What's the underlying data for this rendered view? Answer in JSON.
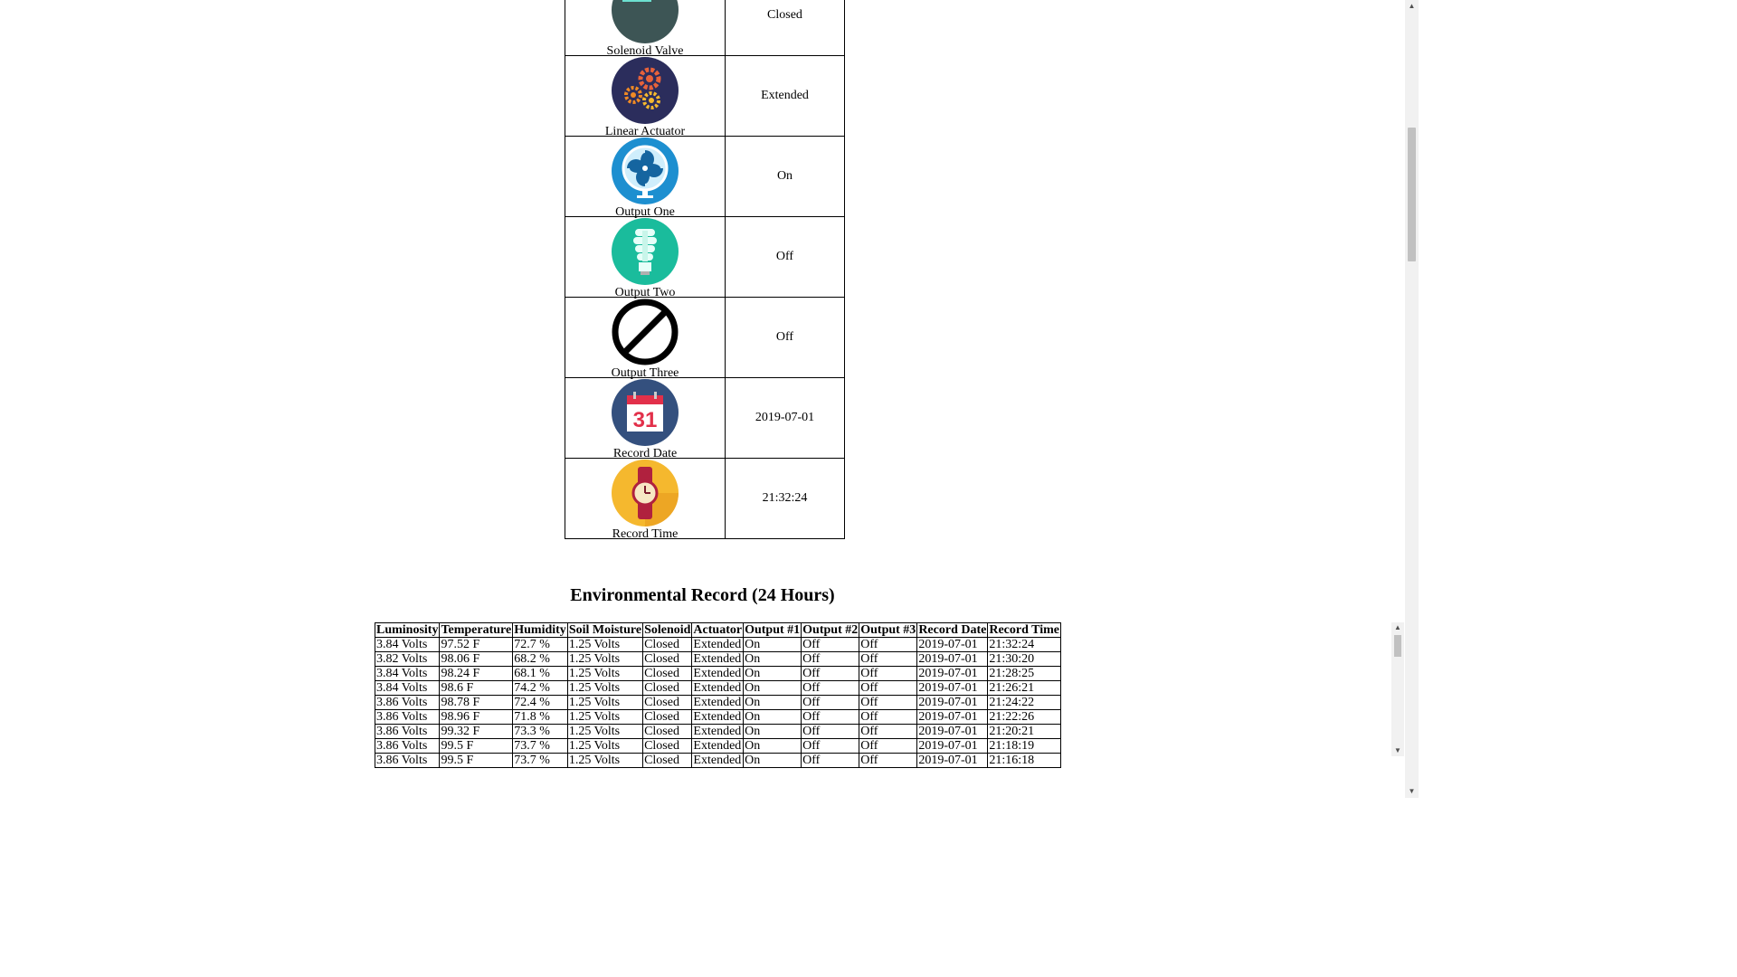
{
  "status_rows": [
    {
      "icon": "solenoid-valve-icon",
      "label": "Solenoid Valve",
      "value": "Closed"
    },
    {
      "icon": "gears-icon",
      "label": "Linear Actuator",
      "value": "Extended"
    },
    {
      "icon": "fan-icon",
      "label": "Output One",
      "value": "On"
    },
    {
      "icon": "light-bulb-icon",
      "label": "Output Two",
      "value": "Off"
    },
    {
      "icon": "prohibited-icon",
      "label": "Output Three",
      "value": "Off"
    },
    {
      "icon": "calendar-icon",
      "label": "Record Date",
      "value": "2019-07-01",
      "calendar_day": "31"
    },
    {
      "icon": "watch-icon",
      "label": "Record Time",
      "value": "21:32:24"
    }
  ],
  "record": {
    "title": "Environmental Record (24 Hours)",
    "headers": [
      "Luminosity",
      "Temperature",
      "Humidity",
      "Soil Moisture",
      "Solenoid",
      "Actuator",
      "Output #1",
      "Output #2",
      "Output #3",
      "Record Date",
      "Record Time"
    ],
    "rows": [
      [
        "3.84 Volts",
        "97.52 F",
        "72.7 %",
        "1.25 Volts",
        "Closed",
        "Extended",
        "On",
        "Off",
        "Off",
        "2019-07-01",
        "21:32:24"
      ],
      [
        "3.82 Volts",
        "98.06 F",
        "68.2 %",
        "1.25 Volts",
        "Closed",
        "Extended",
        "On",
        "Off",
        "Off",
        "2019-07-01",
        "21:30:20"
      ],
      [
        "3.84 Volts",
        "98.24 F",
        "68.1 %",
        "1.25 Volts",
        "Closed",
        "Extended",
        "On",
        "Off",
        "Off",
        "2019-07-01",
        "21:28:25"
      ],
      [
        "3.84 Volts",
        "98.6 F",
        "74.2 %",
        "1.25 Volts",
        "Closed",
        "Extended",
        "On",
        "Off",
        "Off",
        "2019-07-01",
        "21:26:21"
      ],
      [
        "3.86 Volts",
        "98.78 F",
        "72.4 %",
        "1.25 Volts",
        "Closed",
        "Extended",
        "On",
        "Off",
        "Off",
        "2019-07-01",
        "21:24:22"
      ],
      [
        "3.86 Volts",
        "98.96 F",
        "71.8 %",
        "1.25 Volts",
        "Closed",
        "Extended",
        "On",
        "Off",
        "Off",
        "2019-07-01",
        "21:22:26"
      ],
      [
        "3.86 Volts",
        "99.32 F",
        "73.3 %",
        "1.25 Volts",
        "Closed",
        "Extended",
        "On",
        "Off",
        "Off",
        "2019-07-01",
        "21:20:21"
      ],
      [
        "3.86 Volts",
        "99.5 F",
        "73.7 %",
        "1.25 Volts",
        "Closed",
        "Extended",
        "On",
        "Off",
        "Off",
        "2019-07-01",
        "21:18:19"
      ],
      [
        "3.86 Volts",
        "99.5 F",
        "73.7 %",
        "1.25 Volts",
        "Closed",
        "Extended",
        "On",
        "Off",
        "Off",
        "2019-07-01",
        "21:16:18"
      ]
    ]
  },
  "colors": {
    "valve_bg": "#3d5555",
    "gears_bg": "#2b2d5c",
    "fan_bg": "#1d8fd0",
    "bulb_bg": "#1abc9c",
    "calendar_bg": "#34507e",
    "watch_bg": "#f5b82e"
  }
}
